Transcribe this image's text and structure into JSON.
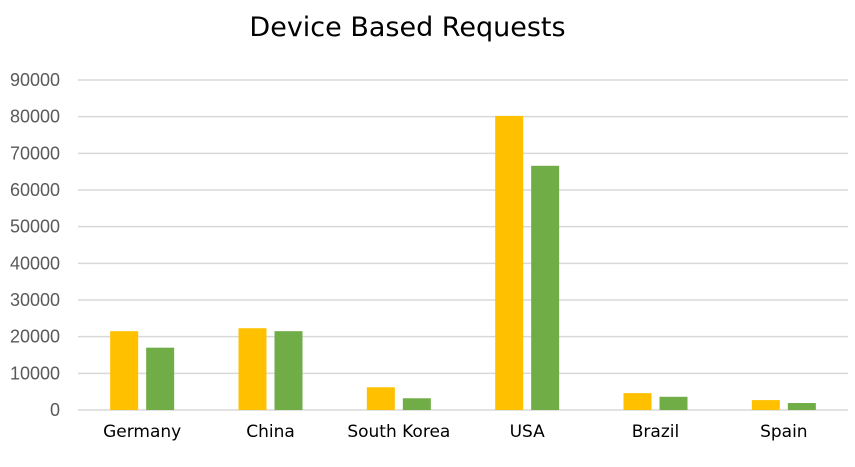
{
  "chart_data": {
    "type": "bar",
    "title": "Device Based Requests",
    "xlabel": "",
    "ylabel": "",
    "categories": [
      "Germany",
      "China",
      "South Korea",
      "USA",
      "Brazil",
      "Spain"
    ],
    "series": [
      {
        "color": "#FFC000",
        "values": [
          21500,
          22300,
          6200,
          80200,
          4600,
          2700
        ]
      },
      {
        "color": "#70AD47",
        "values": [
          17000,
          21500,
          3200,
          66600,
          3600,
          1900
        ]
      }
    ],
    "ylim": [
      0,
      90000
    ],
    "yticks": [
      "0",
      "10000",
      "20000",
      "30000",
      "40000",
      "50000",
      "60000",
      "70000",
      "80000",
      "90000"
    ],
    "grid": true,
    "legend": "none"
  }
}
